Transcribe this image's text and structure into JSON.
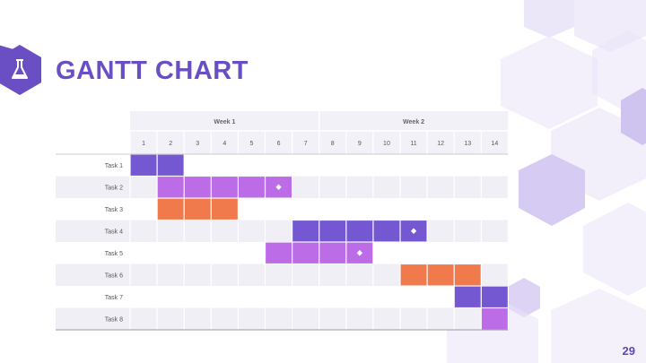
{
  "slide": {
    "title": "GANTT CHART",
    "page_number": "29",
    "icon": "flask-icon"
  },
  "colors": {
    "accent": "#6a4fc4",
    "purple": "#7458d2",
    "violet": "#bd6ce8",
    "orange": "#f07a4c",
    "hexagon": "#e9e4f8"
  },
  "chart_data": {
    "type": "gantt",
    "weeks": [
      {
        "label": "Week 1",
        "days": [
          1,
          7
        ]
      },
      {
        "label": "Week 2",
        "days": [
          8,
          14
        ]
      }
    ],
    "days": [
      "1",
      "2",
      "3",
      "4",
      "5",
      "6",
      "7",
      "8",
      "9",
      "10",
      "11",
      "12",
      "13",
      "14"
    ],
    "tasks": [
      {
        "label": "Task 1",
        "start": 1,
        "end": 2,
        "color": "#7458d2",
        "milestone": null
      },
      {
        "label": "Task 2",
        "start": 2,
        "end": 6,
        "color": "#bd6ce8",
        "milestone": 6
      },
      {
        "label": "Task 3",
        "start": 2,
        "end": 4,
        "color": "#f07a4c",
        "milestone": null
      },
      {
        "label": "Task 4",
        "start": 7,
        "end": 11,
        "color": "#7458d2",
        "milestone": 11
      },
      {
        "label": "Task 5",
        "start": 6,
        "end": 9,
        "color": "#bd6ce8",
        "milestone": 9
      },
      {
        "label": "Task 6",
        "start": 11,
        "end": 13,
        "color": "#f07a4c",
        "milestone": null
      },
      {
        "label": "Task 7",
        "start": 13,
        "end": 14,
        "color": "#7458d2",
        "milestone": null
      },
      {
        "label": "Task 8",
        "start": 14,
        "end": 14,
        "color": "#bd6ce8",
        "milestone": null
      }
    ]
  }
}
